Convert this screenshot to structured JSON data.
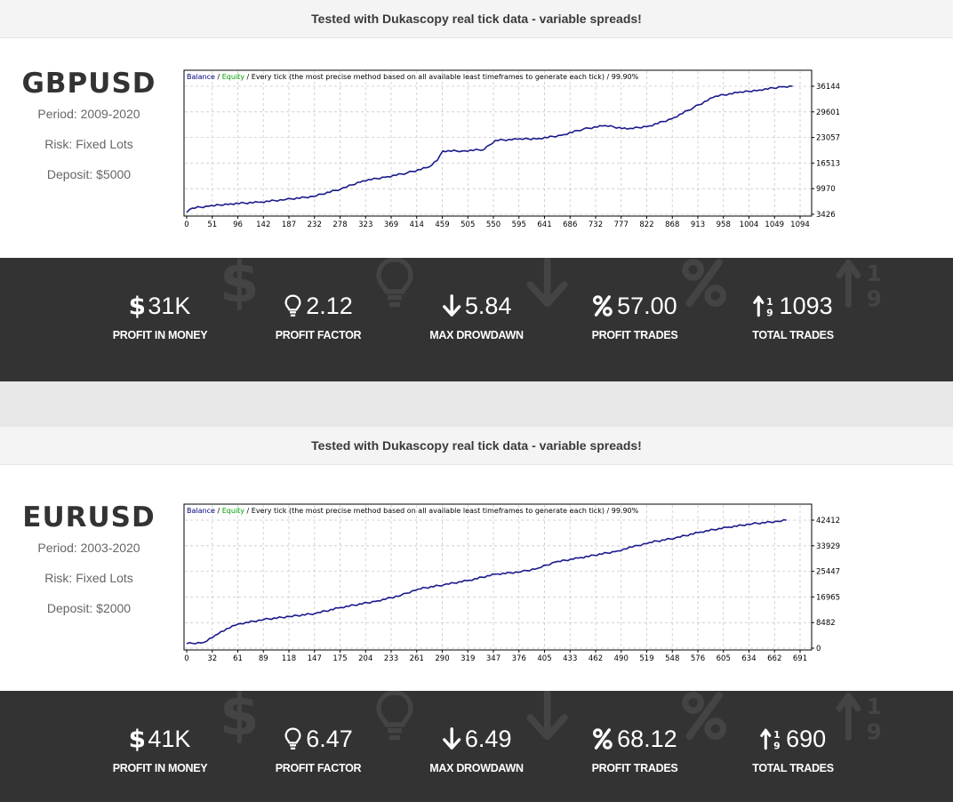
{
  "sections": [
    {
      "banner": "Tested with Dukascopy real tick data - variable spreads!",
      "pair": "GBPUSD",
      "period": "Period: 2009-2020",
      "risk": "Risk: Fixed Lots",
      "deposit": "Deposit: $5000",
      "stats": [
        {
          "icon": "dollar-icon",
          "value": "31K",
          "label": "PROFIT IN MONEY"
        },
        {
          "icon": "lightbulb-icon",
          "value": "2.12",
          "label": "PROFIT FACTOR"
        },
        {
          "icon": "arrow-down-icon",
          "value": "5.84",
          "label": "MAX DROWDAWN"
        },
        {
          "icon": "percent-icon",
          "value": "57.00",
          "label": "PROFIT TRADES"
        },
        {
          "icon": "sort-numeric-icon",
          "value": "1093",
          "label": "TOTAL TRADES"
        }
      ]
    },
    {
      "banner": "Tested with Dukascopy real tick data - variable spreads!",
      "pair": "EURUSD",
      "period": "Period: 2003-2020",
      "risk": "Risk: Fixed Lots",
      "deposit": "Deposit: $2000",
      "stats": [
        {
          "icon": "dollar-icon",
          "value": "41K",
          "label": "PROFIT IN MONEY"
        },
        {
          "icon": "lightbulb-icon",
          "value": "6.47",
          "label": "PROFIT FACTOR"
        },
        {
          "icon": "arrow-down-icon",
          "value": "6.49",
          "label": "MAX DROWDAWN"
        },
        {
          "icon": "percent-icon",
          "value": "68.12",
          "label": "PROFIT TRADES"
        },
        {
          "icon": "sort-numeric-icon",
          "value": "690",
          "label": "TOTAL TRADES"
        }
      ]
    }
  ],
  "chart_legend": {
    "balance": "Balance",
    "sep1": " / ",
    "equity": "Equity",
    "rest": " / Every tick (the most precise method based on all available least timeframes to generate each tick) / 99.90%"
  },
  "colors": {
    "balance": "#000080",
    "equity": "#00a000",
    "dark_band": "#333333",
    "line": "#1a1a8c"
  },
  "chart_data": [
    {
      "type": "line",
      "title": "",
      "xlabel": "",
      "ylabel": "",
      "x_ticks": [
        "0",
        "51",
        "96",
        "142",
        "187",
        "232",
        "278",
        "323",
        "369",
        "414",
        "459",
        "505",
        "550",
        "595",
        "641",
        "686",
        "732",
        "777",
        "822",
        "868",
        "913",
        "958",
        "1004",
        "1049",
        "1094"
      ],
      "y_ticks": [
        "3426",
        "9970",
        "16513",
        "23057",
        "29601",
        "36144"
      ],
      "xlim": [
        0,
        1120
      ],
      "ylim": [
        3426,
        36144
      ],
      "grid": true,
      "series": [
        {
          "name": "Balance",
          "x": [
            0,
            10,
            40,
            80,
            130,
            180,
            230,
            280,
            320,
            360,
            400,
            440,
            455,
            465,
            500,
            540,
            560,
            600,
            640,
            680,
            720,
            760,
            800,
            840,
            880,
            920,
            960,
            1000,
            1040,
            1080,
            1100
          ],
          "y": [
            3900,
            5000,
            5500,
            6100,
            6500,
            7200,
            8000,
            9900,
            12000,
            12900,
            14000,
            15500,
            17200,
            19600,
            19600,
            20000,
            22300,
            22600,
            22800,
            23600,
            25200,
            26100,
            25200,
            26000,
            27800,
            30700,
            33600,
            34500,
            35200,
            36000,
            36144
          ]
        }
      ]
    },
    {
      "type": "line",
      "title": "",
      "xlabel": "",
      "ylabel": "",
      "x_ticks": [
        "0",
        "32",
        "61",
        "89",
        "118",
        "147",
        "175",
        "204",
        "233",
        "261",
        "290",
        "319",
        "347",
        "376",
        "405",
        "433",
        "462",
        "490",
        "519",
        "548",
        "576",
        "605",
        "634",
        "662",
        "691"
      ],
      "y_ticks": [
        "0",
        "8482",
        "16965",
        "25447",
        "33929",
        "42412"
      ],
      "xlim": [
        0,
        720
      ],
      "ylim": [
        0,
        44500
      ],
      "grid": true,
      "series": [
        {
          "name": "Balance",
          "x": [
            0,
            20,
            30,
            40,
            60,
            90,
            120,
            150,
            180,
            220,
            250,
            270,
            300,
            330,
            360,
            390,
            410,
            430,
            460,
            500,
            520,
            540,
            570,
            600,
            630,
            660,
            690,
            700
          ],
          "y": [
            1500,
            1900,
            3500,
            5500,
            8000,
            9500,
            10500,
            11500,
            13500,
            15500,
            17500,
            19600,
            21000,
            22500,
            24500,
            25300,
            26500,
            28500,
            30000,
            32000,
            33500,
            35000,
            36500,
            38500,
            40000,
            41200,
            42000,
            42412
          ]
        }
      ]
    }
  ]
}
